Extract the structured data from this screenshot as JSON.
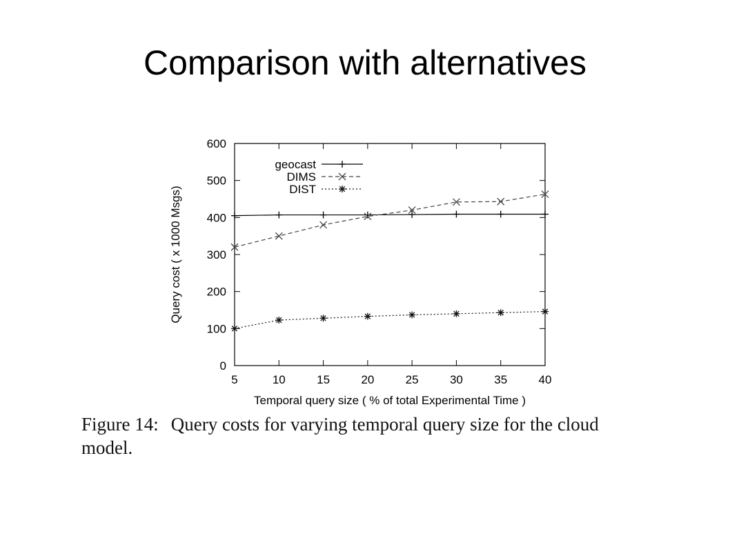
{
  "slide": {
    "title": "Comparison with alternatives"
  },
  "caption": {
    "figure_label": "Figure 14:",
    "text": "Query costs for varying temporal query size for the cloud model."
  },
  "chart_data": {
    "type": "line",
    "title": "",
    "xlabel": "Temporal query size ( % of total Experimental Time )",
    "ylabel": "Query cost ( x 1000 Msgs)",
    "x": [
      5,
      10,
      15,
      20,
      25,
      30,
      35,
      40
    ],
    "xlim": [
      5,
      40
    ],
    "ylim": [
      0,
      600
    ],
    "xticks": [
      5,
      10,
      15,
      20,
      25,
      30,
      35,
      40
    ],
    "yticks": [
      0,
      100,
      200,
      300,
      400,
      500,
      600
    ],
    "grid": false,
    "legend_position": "top-left",
    "series": [
      {
        "name": "geocast",
        "values": [
          405,
          407,
          407,
          407,
          408,
          409,
          409,
          409
        ],
        "marker": "plus",
        "dash": "solid",
        "color": "#000000"
      },
      {
        "name": "DIMS",
        "values": [
          320,
          350,
          380,
          403,
          420,
          442,
          443,
          463
        ],
        "marker": "cross",
        "dash": "dashed",
        "color": "#444444"
      },
      {
        "name": "DIST",
        "values": [
          100,
          123,
          128,
          133,
          137,
          140,
          143,
          146
        ],
        "marker": "star",
        "dash": "dotted",
        "color": "#111111"
      }
    ]
  }
}
